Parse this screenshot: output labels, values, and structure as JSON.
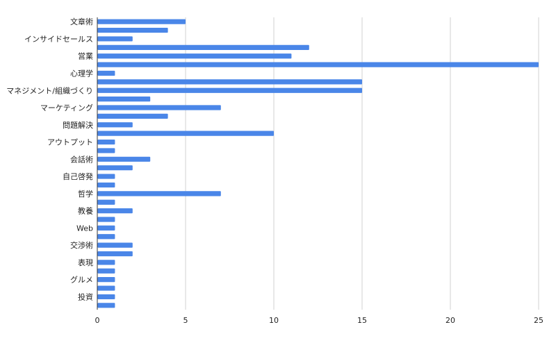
{
  "chart_data": {
    "type": "bar",
    "orientation": "horizontal",
    "title": "",
    "xlabel": "",
    "ylabel": "",
    "xlim": [
      0,
      25
    ],
    "x_ticks": [
      0,
      5,
      10,
      15,
      20,
      25
    ],
    "grid": "vertical",
    "legend": "none",
    "bar_color": "#4a86e8",
    "grid_color": "#d0d0d0",
    "axis_color": "#333333",
    "categories": [
      "文章術",
      "",
      "インサイドセールス",
      "",
      "営業",
      "",
      "心理学",
      "",
      "マネジメント/組織づくり",
      "",
      "マーケティング",
      "",
      "問題解決",
      "",
      "アウトプット",
      "",
      "会話術",
      "",
      "自己啓発",
      "",
      "哲学",
      "",
      "教養",
      "",
      "Web",
      "",
      "交渉術",
      "",
      "表現",
      "",
      "グルメ",
      "",
      "投資",
      ""
    ],
    "values": [
      5,
      4,
      2,
      12,
      11,
      25,
      1,
      15,
      15,
      3,
      7,
      4,
      2,
      10,
      1,
      1,
      3,
      2,
      1,
      1,
      7,
      1,
      2,
      1,
      1,
      1,
      2,
      2,
      1,
      1,
      1,
      1,
      1,
      1
    ]
  }
}
